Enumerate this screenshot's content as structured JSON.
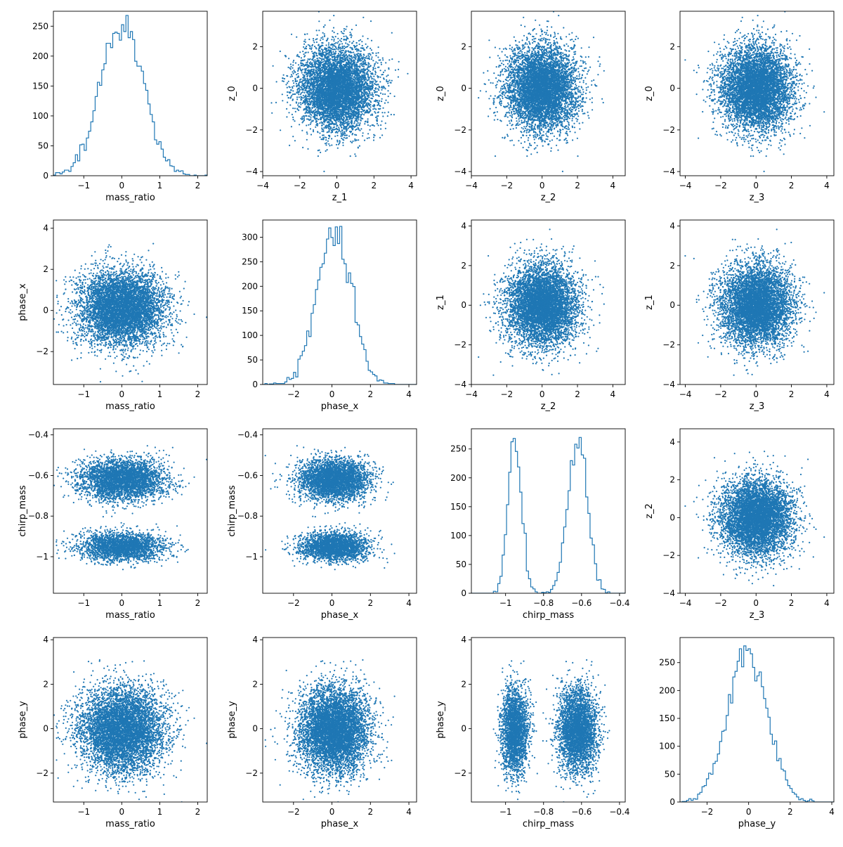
{
  "chart_data": {
    "type": "scatter",
    "layout": "4x4 lower-triangle corner plot",
    "color": "#1f77b4",
    "grid": false,
    "legend": "none",
    "variables": {
      "mass_ratio": {
        "label": "mass_ratio",
        "lim": [
          -1.8,
          2.25
        ],
        "ticks": [
          -1,
          0,
          1,
          2
        ],
        "mean": 0.0,
        "std": 0.55
      },
      "phase_x": {
        "label": "phase_x",
        "lim": [
          -3.6,
          4.4
        ],
        "ticks": [
          -2,
          0,
          2,
          4
        ],
        "mean": 0.1,
        "std": 0.9
      },
      "chirp_mass": {
        "label": "chirp_mass",
        "lim": [
          -1.18,
          -0.37
        ],
        "ticks": [
          -1.0,
          -0.8,
          -0.6,
          -0.4
        ],
        "mixture": [
          {
            "weight": 0.42,
            "mean": -0.95,
            "std": 0.035
          },
          {
            "weight": 0.58,
            "mean": -0.62,
            "std": 0.05
          }
        ]
      },
      "phase_y": {
        "label": "phase_y",
        "lim": [
          -3.3,
          4.1
        ],
        "ticks": [
          -2,
          0,
          2,
          4
        ],
        "mean": -0.05,
        "std": 0.95
      },
      "z_0": {
        "label": "z_0",
        "lim": [
          -4.2,
          3.7
        ],
        "ticks": [
          -4,
          -2,
          0,
          2
        ],
        "mean": 0.0,
        "std": 1.0
      },
      "z_1": {
        "label": "z_1",
        "lim": [
          -4.0,
          4.3
        ],
        "ticks": [
          -4,
          -2,
          0,
          2,
          4
        ],
        "mean": 0.0,
        "std": 1.0
      },
      "z_2": {
        "label": "z_2",
        "lim": [
          -4.0,
          4.7
        ],
        "ticks": [
          -4,
          -2,
          0,
          2,
          4
        ],
        "mean": 0.0,
        "std": 1.0
      },
      "z_3": {
        "label": "z_3",
        "lim": [
          -4.3,
          4.4
        ],
        "ticks": [
          -4,
          -2,
          0,
          2,
          4
        ],
        "mean": 0.0,
        "std": 1.0
      }
    },
    "panels": [
      {
        "row": 0,
        "col": 0,
        "kind": "hist",
        "x": "mass_ratio",
        "ylim": [
          0,
          275
        ],
        "yticks": [
          0,
          50,
          100,
          150,
          200,
          250
        ],
        "peak": 268
      },
      {
        "row": 0,
        "col": 1,
        "kind": "scatter",
        "x": "z_1",
        "y": "z_0"
      },
      {
        "row": 0,
        "col": 2,
        "kind": "scatter",
        "x": "z_2",
        "y": "z_0"
      },
      {
        "row": 0,
        "col": 3,
        "kind": "scatter",
        "x": "z_3",
        "y": "z_0"
      },
      {
        "row": 1,
        "col": 0,
        "kind": "scatter",
        "x": "mass_ratio",
        "y": "phase_x"
      },
      {
        "row": 1,
        "col": 1,
        "kind": "hist",
        "x": "phase_x",
        "ylim": [
          0,
          335
        ],
        "yticks": [
          0,
          50,
          100,
          150,
          200,
          250,
          300
        ],
        "peak": 322
      },
      {
        "row": 1,
        "col": 2,
        "kind": "scatter",
        "x": "z_2",
        "y": "z_1",
        "ylim": [
          -4.0,
          4.3
        ],
        "yticks": [
          -4,
          -2,
          0,
          2,
          4
        ]
      },
      {
        "row": 1,
        "col": 3,
        "kind": "scatter",
        "x": "z_3",
        "y": "z_1",
        "ylim": [
          -4.0,
          4.3
        ],
        "yticks": [
          -4,
          -2,
          0,
          2,
          4
        ]
      },
      {
        "row": 2,
        "col": 0,
        "kind": "scatter",
        "x": "mass_ratio",
        "y": "chirp_mass"
      },
      {
        "row": 2,
        "col": 1,
        "kind": "scatter",
        "x": "phase_x",
        "y": "chirp_mass"
      },
      {
        "row": 2,
        "col": 2,
        "kind": "hist",
        "x": "chirp_mass",
        "ylim": [
          0,
          285
        ],
        "yticks": [
          0,
          50,
          100,
          150,
          200,
          250
        ],
        "peak": 270
      },
      {
        "row": 2,
        "col": 3,
        "kind": "scatter",
        "x": "z_3",
        "y": "z_2",
        "ylim": [
          -4.0,
          4.7
        ],
        "yticks": [
          -4,
          -2,
          0,
          2,
          4
        ]
      },
      {
        "row": 3,
        "col": 0,
        "kind": "scatter",
        "x": "mass_ratio",
        "y": "phase_y"
      },
      {
        "row": 3,
        "col": 1,
        "kind": "scatter",
        "x": "phase_x",
        "y": "phase_y"
      },
      {
        "row": 3,
        "col": 2,
        "kind": "scatter",
        "x": "chirp_mass",
        "y": "phase_y"
      },
      {
        "row": 3,
        "col": 3,
        "kind": "hist",
        "x": "phase_y",
        "ylim": [
          0,
          295
        ],
        "yticks": [
          0,
          50,
          100,
          150,
          200,
          250
        ],
        "peak": 280
      }
    ]
  }
}
